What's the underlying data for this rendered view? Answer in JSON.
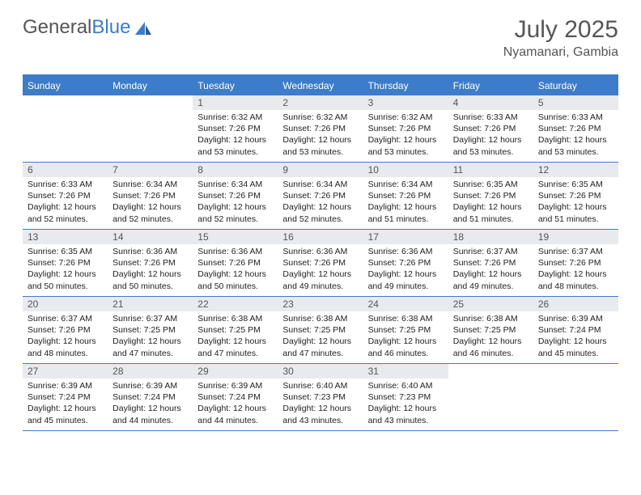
{
  "logo": {
    "word1": "General",
    "word2": "Blue"
  },
  "title": "July 2025",
  "location": "Nyamanari, Gambia",
  "colors": {
    "accent": "#3d7cc9",
    "daynum_bg": "#e8eaed",
    "text": "#222",
    "muted": "#555",
    "bg": "#ffffff"
  },
  "weekdays": [
    "Sunday",
    "Monday",
    "Tuesday",
    "Wednesday",
    "Thursday",
    "Friday",
    "Saturday"
  ],
  "weeks": [
    [
      {
        "n": "",
        "lines": []
      },
      {
        "n": "",
        "lines": []
      },
      {
        "n": "1",
        "lines": [
          "Sunrise: 6:32 AM",
          "Sunset: 7:26 PM",
          "Daylight: 12 hours and 53 minutes."
        ]
      },
      {
        "n": "2",
        "lines": [
          "Sunrise: 6:32 AM",
          "Sunset: 7:26 PM",
          "Daylight: 12 hours and 53 minutes."
        ]
      },
      {
        "n": "3",
        "lines": [
          "Sunrise: 6:32 AM",
          "Sunset: 7:26 PM",
          "Daylight: 12 hours and 53 minutes."
        ]
      },
      {
        "n": "4",
        "lines": [
          "Sunrise: 6:33 AM",
          "Sunset: 7:26 PM",
          "Daylight: 12 hours and 53 minutes."
        ]
      },
      {
        "n": "5",
        "lines": [
          "Sunrise: 6:33 AM",
          "Sunset: 7:26 PM",
          "Daylight: 12 hours and 53 minutes."
        ]
      }
    ],
    [
      {
        "n": "6",
        "lines": [
          "Sunrise: 6:33 AM",
          "Sunset: 7:26 PM",
          "Daylight: 12 hours and 52 minutes."
        ]
      },
      {
        "n": "7",
        "lines": [
          "Sunrise: 6:34 AM",
          "Sunset: 7:26 PM",
          "Daylight: 12 hours and 52 minutes."
        ]
      },
      {
        "n": "8",
        "lines": [
          "Sunrise: 6:34 AM",
          "Sunset: 7:26 PM",
          "Daylight: 12 hours and 52 minutes."
        ]
      },
      {
        "n": "9",
        "lines": [
          "Sunrise: 6:34 AM",
          "Sunset: 7:26 PM",
          "Daylight: 12 hours and 52 minutes."
        ]
      },
      {
        "n": "10",
        "lines": [
          "Sunrise: 6:34 AM",
          "Sunset: 7:26 PM",
          "Daylight: 12 hours and 51 minutes."
        ]
      },
      {
        "n": "11",
        "lines": [
          "Sunrise: 6:35 AM",
          "Sunset: 7:26 PM",
          "Daylight: 12 hours and 51 minutes."
        ]
      },
      {
        "n": "12",
        "lines": [
          "Sunrise: 6:35 AM",
          "Sunset: 7:26 PM",
          "Daylight: 12 hours and 51 minutes."
        ]
      }
    ],
    [
      {
        "n": "13",
        "lines": [
          "Sunrise: 6:35 AM",
          "Sunset: 7:26 PM",
          "Daylight: 12 hours and 50 minutes."
        ]
      },
      {
        "n": "14",
        "lines": [
          "Sunrise: 6:36 AM",
          "Sunset: 7:26 PM",
          "Daylight: 12 hours and 50 minutes."
        ]
      },
      {
        "n": "15",
        "lines": [
          "Sunrise: 6:36 AM",
          "Sunset: 7:26 PM",
          "Daylight: 12 hours and 50 minutes."
        ]
      },
      {
        "n": "16",
        "lines": [
          "Sunrise: 6:36 AM",
          "Sunset: 7:26 PM",
          "Daylight: 12 hours and 49 minutes."
        ]
      },
      {
        "n": "17",
        "lines": [
          "Sunrise: 6:36 AM",
          "Sunset: 7:26 PM",
          "Daylight: 12 hours and 49 minutes."
        ]
      },
      {
        "n": "18",
        "lines": [
          "Sunrise: 6:37 AM",
          "Sunset: 7:26 PM",
          "Daylight: 12 hours and 49 minutes."
        ]
      },
      {
        "n": "19",
        "lines": [
          "Sunrise: 6:37 AM",
          "Sunset: 7:26 PM",
          "Daylight: 12 hours and 48 minutes."
        ]
      }
    ],
    [
      {
        "n": "20",
        "lines": [
          "Sunrise: 6:37 AM",
          "Sunset: 7:26 PM",
          "Daylight: 12 hours and 48 minutes."
        ]
      },
      {
        "n": "21",
        "lines": [
          "Sunrise: 6:37 AM",
          "Sunset: 7:25 PM",
          "Daylight: 12 hours and 47 minutes."
        ]
      },
      {
        "n": "22",
        "lines": [
          "Sunrise: 6:38 AM",
          "Sunset: 7:25 PM",
          "Daylight: 12 hours and 47 minutes."
        ]
      },
      {
        "n": "23",
        "lines": [
          "Sunrise: 6:38 AM",
          "Sunset: 7:25 PM",
          "Daylight: 12 hours and 47 minutes."
        ]
      },
      {
        "n": "24",
        "lines": [
          "Sunrise: 6:38 AM",
          "Sunset: 7:25 PM",
          "Daylight: 12 hours and 46 minutes."
        ]
      },
      {
        "n": "25",
        "lines": [
          "Sunrise: 6:38 AM",
          "Sunset: 7:25 PM",
          "Daylight: 12 hours and 46 minutes."
        ]
      },
      {
        "n": "26",
        "lines": [
          "Sunrise: 6:39 AM",
          "Sunset: 7:24 PM",
          "Daylight: 12 hours and 45 minutes."
        ]
      }
    ],
    [
      {
        "n": "27",
        "lines": [
          "Sunrise: 6:39 AM",
          "Sunset: 7:24 PM",
          "Daylight: 12 hours and 45 minutes."
        ]
      },
      {
        "n": "28",
        "lines": [
          "Sunrise: 6:39 AM",
          "Sunset: 7:24 PM",
          "Daylight: 12 hours and 44 minutes."
        ]
      },
      {
        "n": "29",
        "lines": [
          "Sunrise: 6:39 AM",
          "Sunset: 7:24 PM",
          "Daylight: 12 hours and 44 minutes."
        ]
      },
      {
        "n": "30",
        "lines": [
          "Sunrise: 6:40 AM",
          "Sunset: 7:23 PM",
          "Daylight: 12 hours and 43 minutes."
        ]
      },
      {
        "n": "31",
        "lines": [
          "Sunrise: 6:40 AM",
          "Sunset: 7:23 PM",
          "Daylight: 12 hours and 43 minutes."
        ]
      },
      {
        "n": "",
        "lines": []
      },
      {
        "n": "",
        "lines": []
      }
    ]
  ]
}
